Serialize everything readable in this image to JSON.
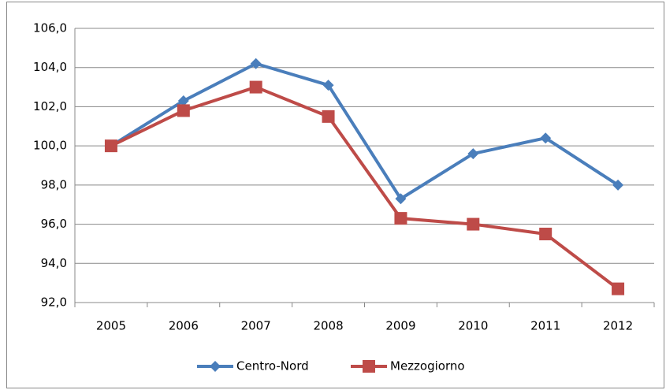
{
  "chart_data": {
    "type": "line",
    "categories": [
      "2005",
      "2006",
      "2007",
      "2008",
      "2009",
      "2010",
      "2011",
      "2012"
    ],
    "series": [
      {
        "name": "Centro-Nord",
        "color": "#4a7ebb",
        "marker": "diamond",
        "values": [
          100.0,
          102.3,
          104.2,
          103.1,
          97.3,
          99.6,
          100.4,
          98.0
        ]
      },
      {
        "name": "Mezzogiorno",
        "color": "#be4b48",
        "marker": "square",
        "values": [
          100.0,
          101.8,
          103.0,
          101.5,
          96.3,
          96.0,
          95.5,
          92.7
        ]
      }
    ],
    "ylim": [
      92,
      106
    ],
    "yticks": [
      {
        "value": 92,
        "label": "92,0"
      },
      {
        "value": 94,
        "label": "94,0"
      },
      {
        "value": 96,
        "label": "96,0"
      },
      {
        "value": 98,
        "label": "98,0"
      },
      {
        "value": 100,
        "label": "100,0"
      },
      {
        "value": 102,
        "label": "102,0"
      },
      {
        "value": 104,
        "label": "104,0"
      },
      {
        "value": 106,
        "label": "106,0"
      }
    ],
    "grid": true,
    "legend": "bottom"
  }
}
